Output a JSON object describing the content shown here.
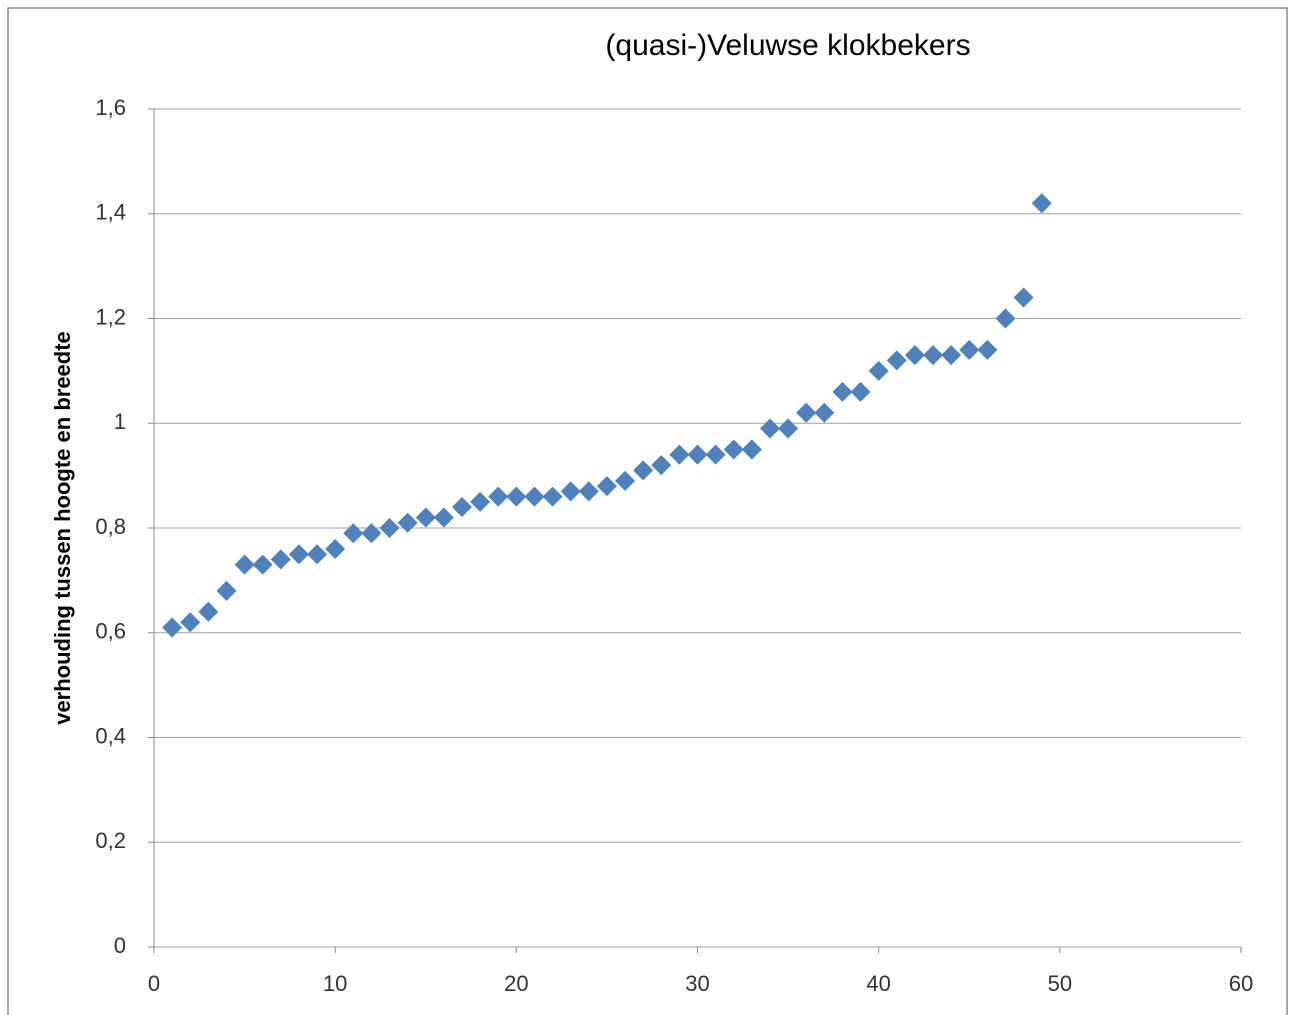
{
  "chart_data": {
    "type": "scatter",
    "title": "(quasi-)Veluwse klokbekers",
    "y_label": "verhouding tussen hoogte en breedte",
    "series": [
      {
        "color": "#4f81bd",
        "x": [
          1,
          2,
          3,
          4,
          5,
          6,
          7,
          8,
          9,
          10,
          11,
          12,
          13,
          14,
          15,
          16,
          17,
          18,
          19,
          20,
          21,
          22,
          23,
          24,
          25,
          26,
          27,
          28,
          29,
          30,
          31,
          32,
          33,
          34,
          35,
          36,
          37,
          38,
          39,
          40,
          41,
          42,
          43,
          44,
          45,
          46,
          47,
          48,
          49
        ],
        "values": [
          0.61,
          0.62,
          0.64,
          0.68,
          0.73,
          0.73,
          0.74,
          0.75,
          0.75,
          0.76,
          0.79,
          0.79,
          0.8,
          0.81,
          0.82,
          0.82,
          0.84,
          0.85,
          0.86,
          0.86,
          0.86,
          0.86,
          0.87,
          0.87,
          0.88,
          0.89,
          0.91,
          0.92,
          0.94,
          0.94,
          0.94,
          0.95,
          0.95,
          0.99,
          0.99,
          1.02,
          1.02,
          1.06,
          1.06,
          1.1,
          1.12,
          1.13,
          1.13,
          1.13,
          1.14,
          1.14,
          1.2,
          1.24,
          1.42
        ]
      }
    ],
    "xlim": [
      0,
      60
    ],
    "xticks": [
      0,
      10,
      20,
      30,
      40,
      50,
      60
    ],
    "ylim": [
      0,
      1.6
    ],
    "yticks": [
      0,
      {
        "value": 0.2,
        "label": "0,2"
      },
      {
        "value": 0.4,
        "label": "0,4"
      },
      {
        "value": 0.6,
        "label": "0,6"
      },
      {
        "value": 0.8,
        "label": "0,8"
      },
      1,
      {
        "value": 1.2,
        "label": "1,2"
      },
      {
        "value": 1.4,
        "label": "1,4"
      },
      {
        "value": 1.6,
        "label": "1,6"
      }
    ],
    "grid": true
  }
}
